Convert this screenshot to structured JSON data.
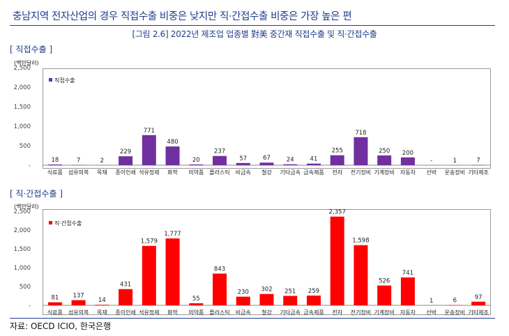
{
  "headline": "충남지역 전자산업의 경우 직접수출 비중은 낮지만 직·간접수출 비중은 가장 높은 편",
  "figure_title": "[그림 2.6] 2022년 제조업 업종별 對美 중간재 직접수출 및 직·간접수출",
  "source": "자료: OECD ICIO, 한국은행",
  "colors": {
    "direct": "#7030a0",
    "total": "#ff0000",
    "accent": "#1f3c8c"
  },
  "chart_data": [
    {
      "type": "bar",
      "section_title": "[ 직접수출 ]",
      "unit_label": "(백만달러)",
      "title": "",
      "xlabel": "",
      "ylabel": "(백만달러)",
      "ylim": [
        0,
        2500
      ],
      "yticks": [
        "2,500",
        "2,000",
        "1,500",
        "1,000",
        "500",
        "-"
      ],
      "legend": "직접수출",
      "legend_position": "top-left",
      "categories": [
        "식료품",
        "섬유의복",
        "목재",
        "종이인쇄",
        "석유정제",
        "화학",
        "의약품",
        "플라스틱",
        "비금속",
        "철강",
        "기타금속",
        "금속제품",
        "전자",
        "전기장비",
        "기계장비",
        "자동차",
        "선박",
        "운송장비",
        "기타제조"
      ],
      "values": [
        18,
        7,
        2,
        229,
        771,
        480,
        20,
        237,
        57,
        67,
        24,
        41,
        255,
        718,
        250,
        200,
        0,
        1,
        7
      ],
      "value_labels": [
        "18",
        "7",
        "2",
        "229",
        "771",
        "480",
        "20",
        "237",
        "57",
        "67",
        "24",
        "41",
        "255",
        "718",
        "250",
        "200",
        "-",
        "1",
        "7"
      ]
    },
    {
      "type": "bar",
      "section_title": "[ 직·간접수출 ]",
      "unit_label": "(백만달러)",
      "title": "",
      "xlabel": "",
      "ylabel": "(백만달러)",
      "ylim": [
        0,
        2500
      ],
      "yticks": [
        "2,500",
        "2,000",
        "1,500",
        "1,000",
        "500",
        "-"
      ],
      "legend": "직·간접수출",
      "legend_position": "top-left",
      "categories": [
        "식료품",
        "섬유의복",
        "목재",
        "종이인쇄",
        "석유정제",
        "화학",
        "의약품",
        "플라스틱",
        "비금속",
        "철강",
        "기타금속",
        "금속제품",
        "전자",
        "전기장비",
        "기계장비",
        "자동차",
        "선박",
        "운송장비",
        "기타제조"
      ],
      "values": [
        81,
        137,
        14,
        431,
        1579,
        1777,
        55,
        843,
        230,
        302,
        251,
        259,
        2357,
        1598,
        526,
        741,
        1,
        6,
        97
      ],
      "value_labels": [
        "81",
        "137",
        "14",
        "431",
        "1,579",
        "1,777",
        "55",
        "843",
        "230",
        "302",
        "251",
        "259",
        "2,357",
        "1,598",
        "526",
        "741",
        "1",
        "6",
        "97"
      ]
    }
  ]
}
